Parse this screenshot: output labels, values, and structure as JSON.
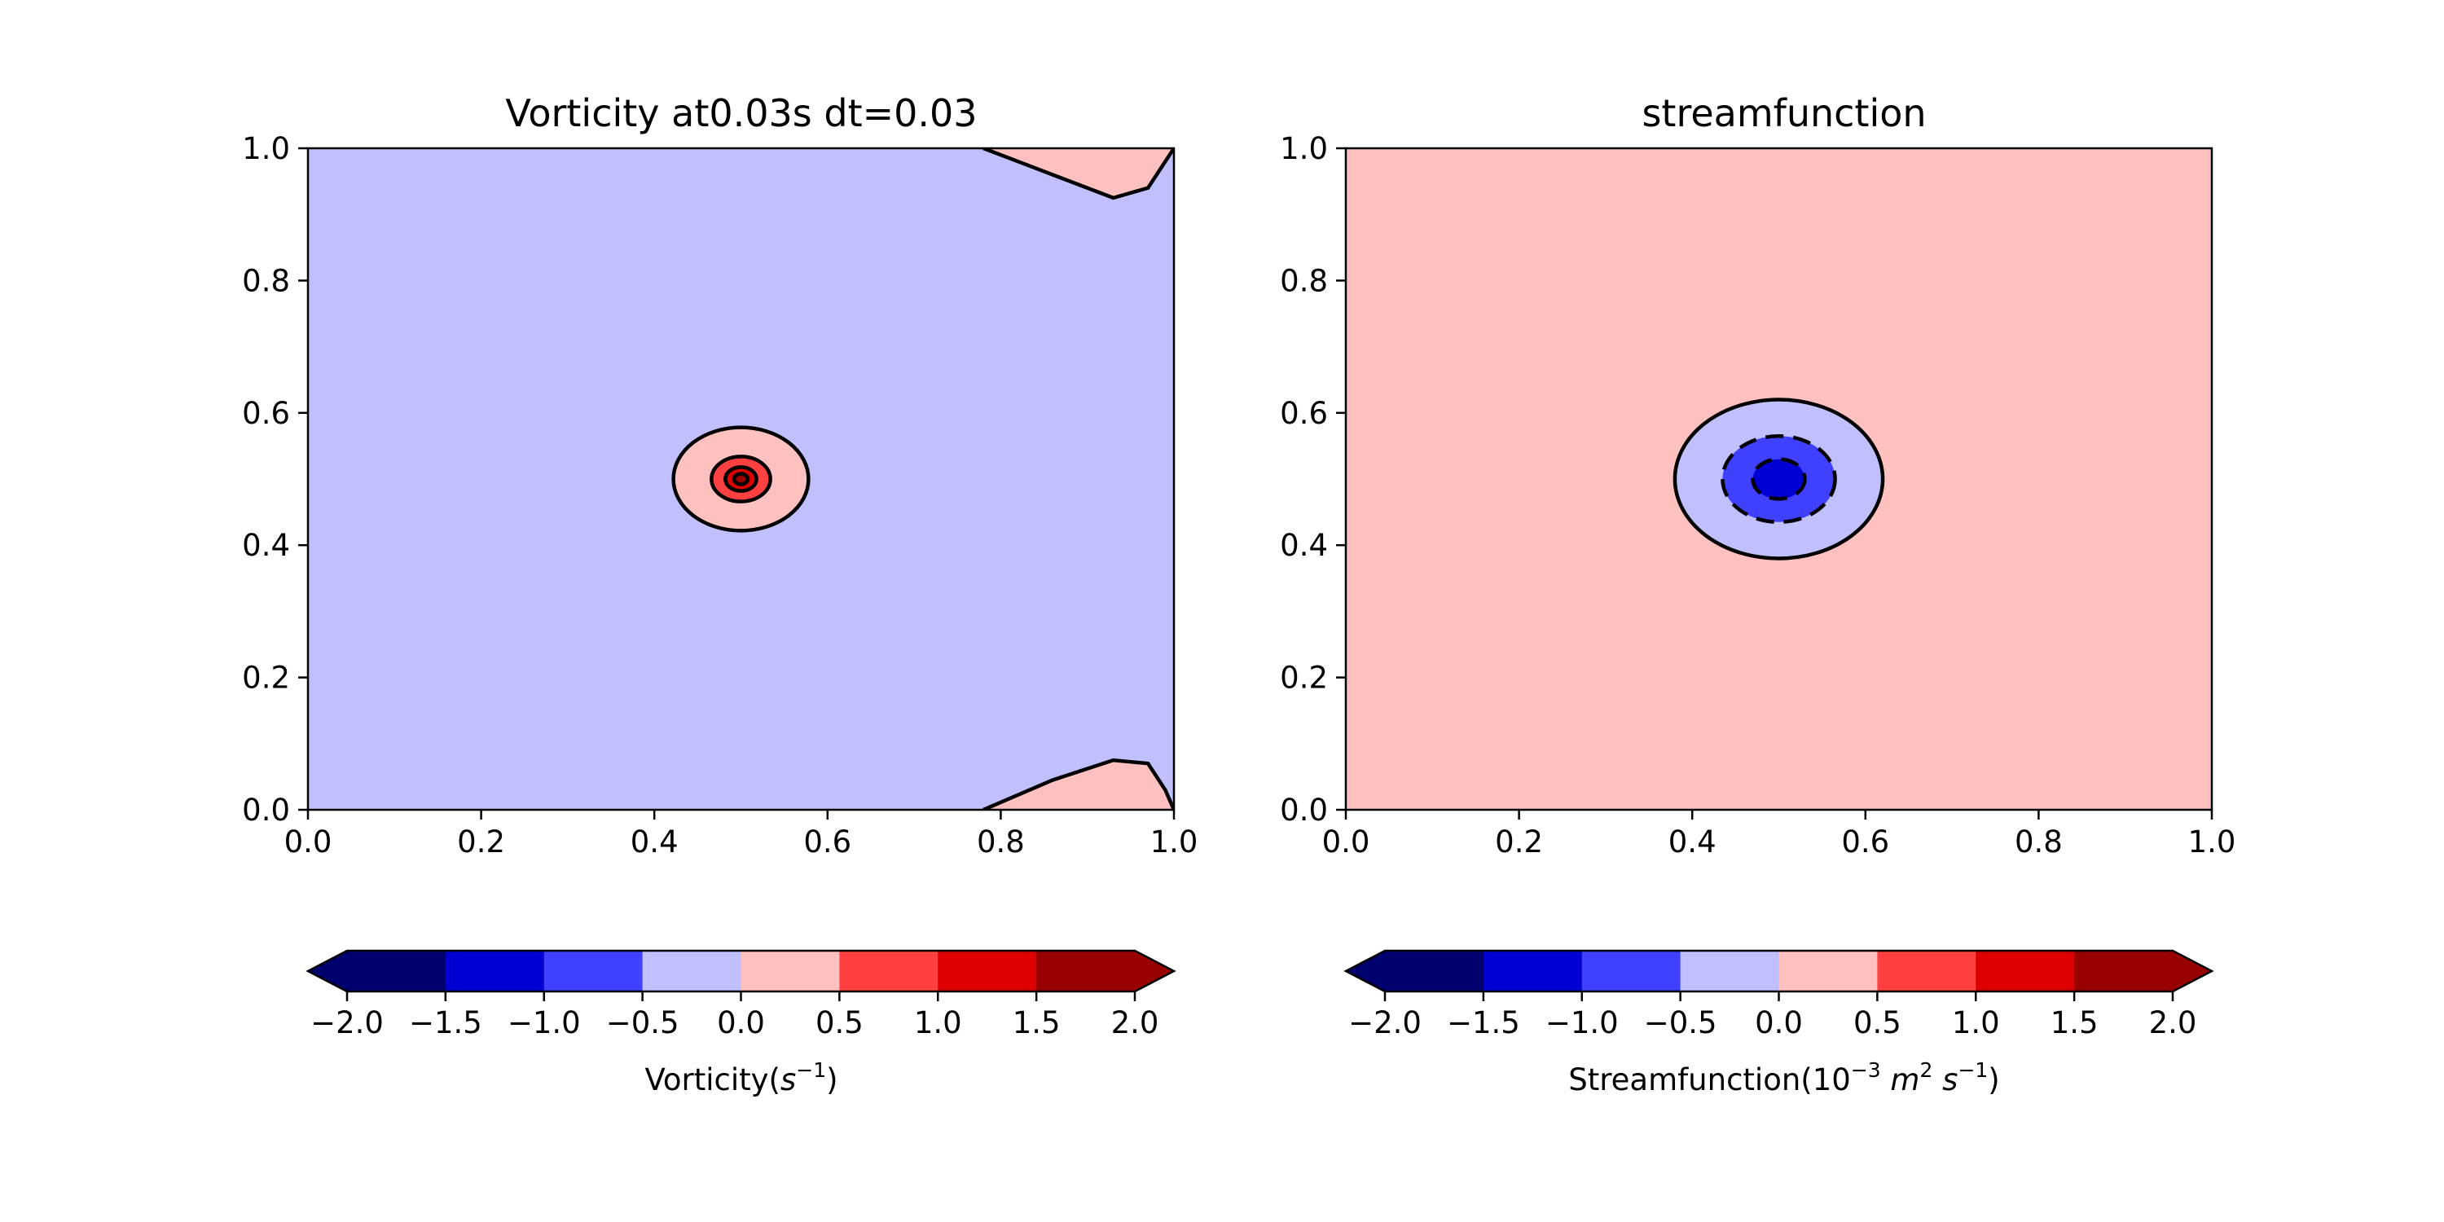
{
  "chart_data": [
    {
      "type": "contourf",
      "title": "Vorticity at0.03s dt=0.03",
      "xlim": [
        0.0,
        1.0
      ],
      "ylim": [
        0.0,
        1.0
      ],
      "xticks": [
        "0.0",
        "0.2",
        "0.4",
        "0.6",
        "0.8",
        "1.0"
      ],
      "yticks": [
        "0.0",
        "0.2",
        "0.4",
        "0.6",
        "0.8",
        "1.0"
      ],
      "background_level": [
        -0.5,
        0.0
      ],
      "features": [
        {
          "kind": "vortex",
          "center": [
            0.5,
            0.5
          ],
          "rings": [
            {
              "rx": 0.078,
              "ry": 0.078,
              "level": [
                0.0,
                0.5
              ]
            },
            {
              "rx": 0.034,
              "ry": 0.034,
              "level": [
                0.5,
                1.0
              ]
            },
            {
              "rx": 0.018,
              "ry": 0.018,
              "level": [
                1.0,
                1.5
              ]
            },
            {
              "rx": 0.008,
              "ry": 0.008,
              "level": [
                1.5,
                2.0
              ]
            }
          ]
        },
        {
          "kind": "edge-lobe",
          "points": [
            [
              0.78,
              1.0
            ],
            [
              0.86,
              0.96
            ],
            [
              0.93,
              0.925
            ],
            [
              0.97,
              0.94
            ],
            [
              0.99,
              0.98
            ],
            [
              1.0,
              1.0
            ]
          ],
          "level": [
            0.0,
            0.5
          ]
        },
        {
          "kind": "edge-lobe",
          "points": [
            [
              0.78,
              0.0
            ],
            [
              0.86,
              0.045
            ],
            [
              0.93,
              0.075
            ],
            [
              0.97,
              0.07
            ],
            [
              0.99,
              0.03
            ],
            [
              1.0,
              0.0
            ]
          ],
          "level": [
            0.0,
            0.5
          ]
        }
      ],
      "colorbar": {
        "label_main": "Vorticity(",
        "label_var": "s",
        "label_exp": "−1",
        "label_end": ")",
        "ticks": [
          "−2.0",
          "−1.5",
          "−1.0",
          "−0.5",
          "0.0",
          "0.5",
          "1.0",
          "1.5",
          "2.0"
        ],
        "levels": [
          -2.0,
          -1.5,
          -1.0,
          -0.5,
          0.0,
          0.5,
          1.0,
          1.5,
          2.0
        ],
        "extend": "both"
      }
    },
    {
      "type": "contourf",
      "title": "streamfunction",
      "xlim": [
        0.0,
        1.0
      ],
      "ylim": [
        0.0,
        1.0
      ],
      "xticks": [
        "0.0",
        "0.2",
        "0.4",
        "0.6",
        "0.8",
        "1.0"
      ],
      "yticks": [
        "0.0",
        "0.2",
        "0.4",
        "0.6",
        "0.8",
        "1.0"
      ],
      "background_level": [
        0.0,
        0.5
      ],
      "features": [
        {
          "kind": "vortex",
          "center": [
            0.5,
            0.5
          ],
          "rings": [
            {
              "rx": 0.12,
              "ry": 0.12,
              "level": [
                -0.5,
                0.0
              ],
              "dashed": false
            },
            {
              "rx": 0.065,
              "ry": 0.065,
              "level": [
                -1.0,
                -0.5
              ],
              "dashed": true
            },
            {
              "rx": 0.03,
              "ry": 0.03,
              "level": [
                -1.5,
                -1.0
              ],
              "dashed": true
            }
          ]
        }
      ],
      "colorbar": {
        "label_main": "Streamfunction(10",
        "label_exp1": "−3",
        "label_m": " m",
        "label_exp2": "2",
        "label_s": " s",
        "label_exp3": "−1",
        "label_end": ")",
        "ticks": [
          "−2.0",
          "−1.5",
          "−1.0",
          "−0.5",
          "0.0",
          "0.5",
          "1.0",
          "1.5",
          "2.0"
        ],
        "levels": [
          -2.0,
          -1.5,
          -1.0,
          -0.5,
          0.0,
          0.5,
          1.0,
          1.5,
          2.0
        ],
        "extend": "both"
      }
    }
  ],
  "palette": {
    "levels": [
      "#00006e",
      "#0000d4",
      "#4040ff",
      "#c0c0ff",
      "#ffc0c0",
      "#ff4040",
      "#de0000",
      "#990000"
    ],
    "edge": "#000000"
  }
}
